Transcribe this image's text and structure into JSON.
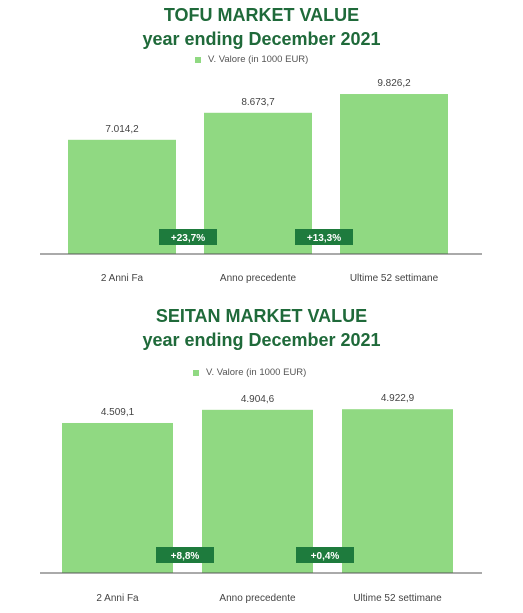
{
  "colors": {
    "bar": "#90d982",
    "badge": "#1e7b3d",
    "title": "#1f6a3a",
    "axis": "#555555"
  },
  "chart_data": [
    {
      "type": "bar",
      "title": "TOFU MARKET VALUE",
      "subtitle": "year ending December 2021",
      "legend": "V. Valore (in 1000 EUR)",
      "categories": [
        "2 Anni Fa",
        "Anno precedente",
        "Ultime 52 settimane"
      ],
      "series": [
        {
          "name": "V. Valore (in 1000 EUR)",
          "values": [
            7014.2,
            8673.7,
            9826.2
          ]
        }
      ],
      "value_labels": [
        "7.014,2",
        "8.673,7",
        "9.826,2"
      ],
      "change_badges": [
        "+23,7%",
        "+13,3%"
      ],
      "ylim": [
        0,
        10000
      ],
      "grid": false
    },
    {
      "type": "bar",
      "title": "SEITAN MARKET VALUE",
      "subtitle": "year ending December 2021",
      "legend": "V. Valore (in 1000 EUR)",
      "categories": [
        "2 Anni Fa",
        "Anno precedente",
        "Ultime 52 settimane"
      ],
      "series": [
        {
          "name": "V. Valore (in 1000 EUR)",
          "values": [
            4509.1,
            4904.6,
            4922.9
          ]
        }
      ],
      "value_labels": [
        "4.509,1",
        "4.904,6",
        "4.922,9"
      ],
      "change_badges": [
        "+8,8%",
        "+0,4%"
      ],
      "ylim": [
        0,
        5000
      ],
      "grid": false
    }
  ]
}
